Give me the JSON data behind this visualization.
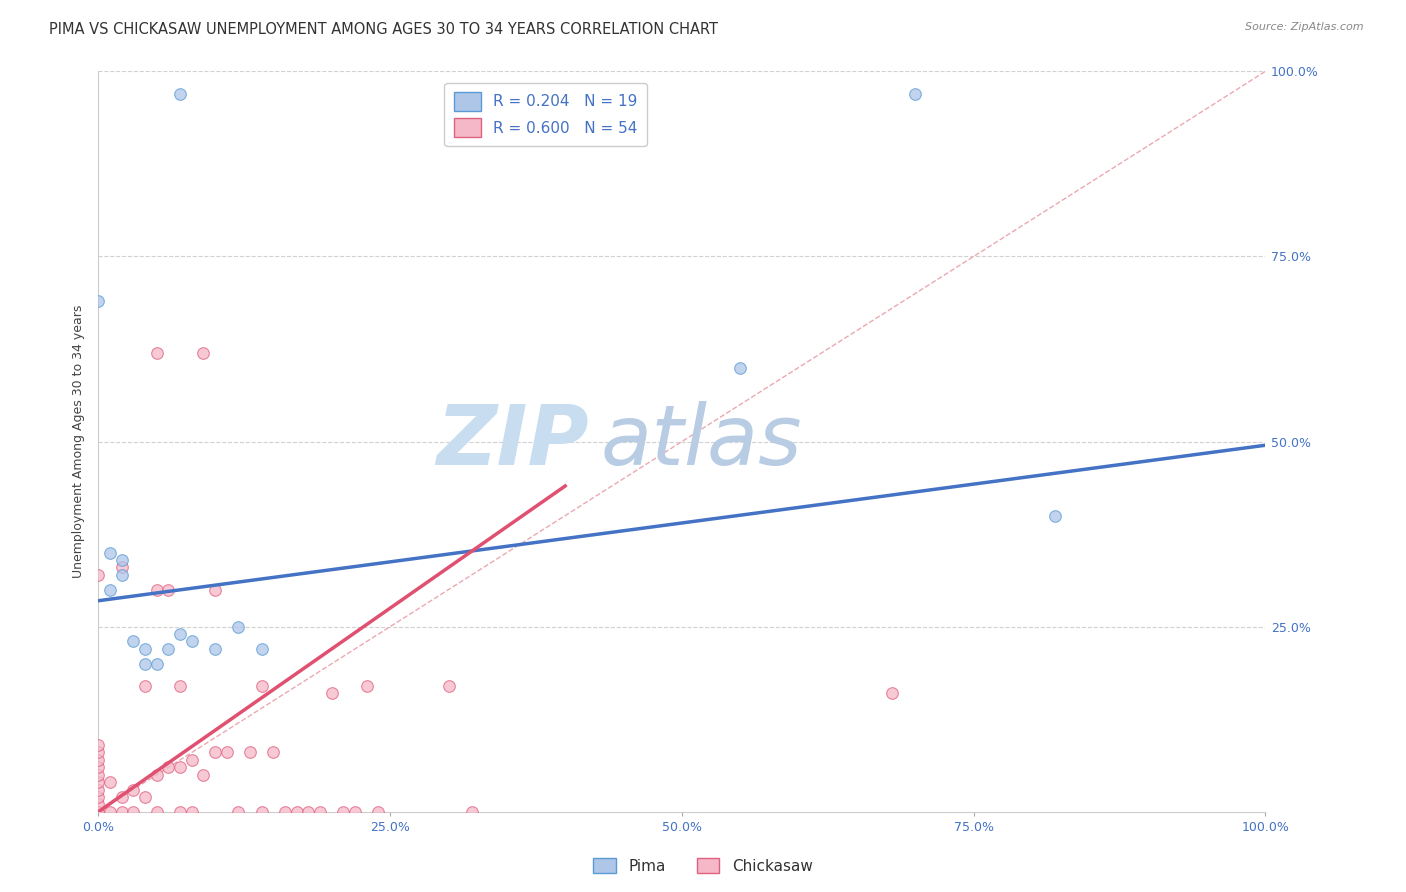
{
  "title": "PIMA VS CHICKASAW UNEMPLOYMENT AMONG AGES 30 TO 34 YEARS CORRELATION CHART",
  "source": "Source: ZipAtlas.com",
  "ylabel": "Unemployment Among Ages 30 to 34 years",
  "xlim": [
    0.0,
    1.0
  ],
  "ylim": [
    0.0,
    1.0
  ],
  "xtick_labels": [
    "0.0%",
    "25.0%",
    "50.0%",
    "75.0%",
    "100.0%"
  ],
  "xtick_positions": [
    0.0,
    0.25,
    0.5,
    0.75,
    1.0
  ],
  "right_ytick_labels": [
    "100.0%",
    "75.0%",
    "50.0%",
    "25.0%"
  ],
  "right_ytick_positions": [
    1.0,
    0.75,
    0.5,
    0.25
  ],
  "pima_color": "#aec6e8",
  "pima_edge_color": "#5b9bd5",
  "chickasaw_color": "#f4b8c8",
  "chickasaw_edge_color": "#e06080",
  "pima_R": 0.204,
  "pima_N": 19,
  "chickasaw_R": 0.6,
  "chickasaw_N": 54,
  "pima_line_color": "#4472c4",
  "chickasaw_line_color": "#e05070",
  "diagonal_color": "#e8a0a8",
  "legend_color": "#4472c4",
  "watermark_zip_color": "#c8ddf0",
  "watermark_atlas_color": "#b8cce4",
  "pima_scatter_x": [
    0.07,
    0.0,
    0.01,
    0.01,
    0.02,
    0.02,
    0.03,
    0.04,
    0.04,
    0.05,
    0.06,
    0.07,
    0.08,
    0.1,
    0.12,
    0.14,
    0.55,
    0.7,
    0.82
  ],
  "pima_scatter_y": [
    0.97,
    0.69,
    0.35,
    0.3,
    0.34,
    0.32,
    0.23,
    0.2,
    0.22,
    0.2,
    0.22,
    0.24,
    0.23,
    0.22,
    0.25,
    0.22,
    0.6,
    0.97,
    0.4
  ],
  "chickasaw_scatter_x": [
    0.0,
    0.0,
    0.0,
    0.0,
    0.0,
    0.0,
    0.0,
    0.0,
    0.0,
    0.0,
    0.0,
    0.0,
    0.01,
    0.01,
    0.02,
    0.02,
    0.02,
    0.03,
    0.03,
    0.04,
    0.04,
    0.05,
    0.05,
    0.05,
    0.05,
    0.06,
    0.06,
    0.07,
    0.07,
    0.07,
    0.08,
    0.08,
    0.09,
    0.09,
    0.1,
    0.1,
    0.11,
    0.12,
    0.13,
    0.14,
    0.14,
    0.15,
    0.16,
    0.17,
    0.18,
    0.19,
    0.2,
    0.21,
    0.22,
    0.23,
    0.24,
    0.3,
    0.32,
    0.68
  ],
  "chickasaw_scatter_y": [
    0.0,
    0.0,
    0.01,
    0.02,
    0.03,
    0.04,
    0.05,
    0.06,
    0.07,
    0.08,
    0.09,
    0.32,
    0.0,
    0.04,
    0.0,
    0.02,
    0.33,
    0.0,
    0.03,
    0.02,
    0.17,
    0.0,
    0.05,
    0.3,
    0.62,
    0.06,
    0.3,
    0.0,
    0.06,
    0.17,
    0.0,
    0.07,
    0.05,
    0.62,
    0.3,
    0.08,
    0.08,
    0.0,
    0.08,
    0.0,
    0.17,
    0.08,
    0.0,
    0.0,
    0.0,
    0.0,
    0.16,
    0.0,
    0.0,
    0.17,
    0.0,
    0.17,
    0.0,
    0.16
  ],
  "pima_trend_x": [
    0.0,
    1.0
  ],
  "pima_trend_y": [
    0.285,
    0.495
  ],
  "chickasaw_trend_x": [
    0.0,
    0.4
  ],
  "chickasaw_trend_y": [
    0.0,
    0.44
  ],
  "background_color": "#ffffff",
  "grid_color": "#cccccc",
  "title_fontsize": 10.5,
  "axis_label_fontsize": 9,
  "tick_fontsize": 9,
  "legend_fontsize": 11,
  "marker_size": 70
}
